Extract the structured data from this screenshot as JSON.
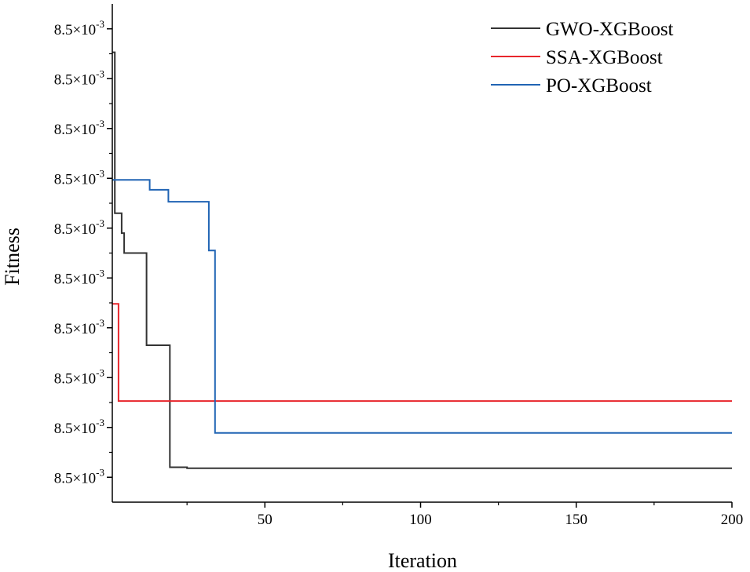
{
  "chart_data": {
    "type": "line",
    "xlabel": "Iteration",
    "ylabel": "Fitness",
    "xlim": [
      1,
      200
    ],
    "ylim": [
      0,
      10
    ],
    "x_ticks": [
      50,
      100,
      150,
      200
    ],
    "y_ticks": [
      {
        "value": 0.5,
        "mantissa": "8.5×10",
        "exponent": "-3"
      },
      {
        "value": 1.5,
        "mantissa": "8.5×10",
        "exponent": "-3"
      },
      {
        "value": 2.5,
        "mantissa": "8.5×10",
        "exponent": "-3"
      },
      {
        "value": 3.5,
        "mantissa": "8.5×10",
        "exponent": "-3"
      },
      {
        "value": 4.5,
        "mantissa": "8.5×10",
        "exponent": "-3"
      },
      {
        "value": 5.5,
        "mantissa": "8.5×10",
        "exponent": "-3"
      },
      {
        "value": 6.5,
        "mantissa": "8.5×10",
        "exponent": "-3"
      },
      {
        "value": 7.5,
        "mantissa": "8.5×10",
        "exponent": "-3"
      },
      {
        "value": 8.5,
        "mantissa": "8.5×10",
        "exponent": "-3"
      },
      {
        "value": 9.5,
        "mantissa": "8.5×10",
        "exponent": "-3"
      }
    ],
    "legend_position": "top-right",
    "grid": false,
    "series": [
      {
        "name": "GWO-XGBoost",
        "color": "#333333",
        "points": [
          [
            1,
            9.03
          ],
          [
            1.8,
            9.03
          ],
          [
            1.8,
            5.8
          ],
          [
            4,
            5.8
          ],
          [
            4,
            5.4
          ],
          [
            4.8,
            5.4
          ],
          [
            4.8,
            5.0
          ],
          [
            12,
            5.0
          ],
          [
            12,
            3.15
          ],
          [
            19.5,
            3.15
          ],
          [
            19.5,
            0.7
          ],
          [
            25,
            0.7
          ],
          [
            25,
            0.68
          ],
          [
            200,
            0.68
          ]
        ]
      },
      {
        "name": "SSA-XGBoost",
        "color": "#e8262c",
        "points": [
          [
            1,
            3.98
          ],
          [
            3,
            3.98
          ],
          [
            3,
            2.03
          ],
          [
            200,
            2.03
          ]
        ]
      },
      {
        "name": "PO-XGBoost",
        "color": "#2064b4",
        "points": [
          [
            1,
            6.47
          ],
          [
            13,
            6.47
          ],
          [
            13,
            6.27
          ],
          [
            19,
            6.27
          ],
          [
            19,
            6.03
          ],
          [
            32,
            6.03
          ],
          [
            32,
            5.05
          ],
          [
            34,
            5.05
          ],
          [
            34,
            1.39
          ],
          [
            200,
            1.39
          ]
        ]
      }
    ]
  }
}
